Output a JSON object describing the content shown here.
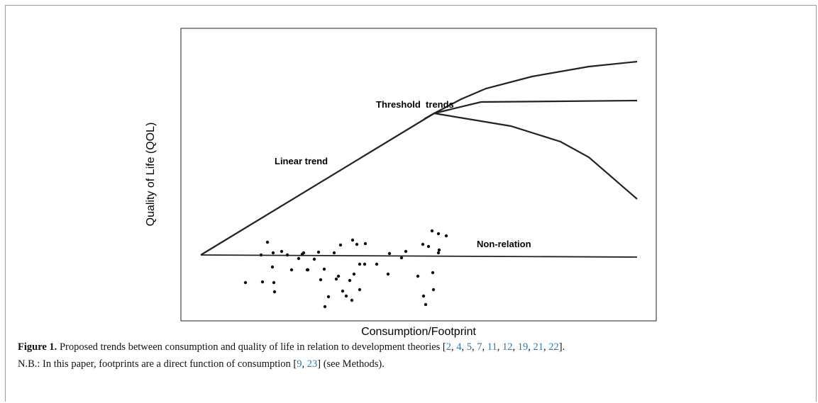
{
  "figure": {
    "y_label": "Quality of Life (QOL)",
    "x_label": "Consumption/Footprint",
    "annotations": [
      "Threshold  trends",
      "Linear trend",
      "Non-relation"
    ]
  },
  "caption": {
    "label": "Figure 1.",
    "line1": "Proposed trends between consumption and quality of life in relation to development theories [2, 4, 5, 7, 11, 12, 19, 21, 22].",
    "line2": "N.B.: In this paper, footprints are a direct function of consumption [9, 23] (see Methods)."
  }
}
